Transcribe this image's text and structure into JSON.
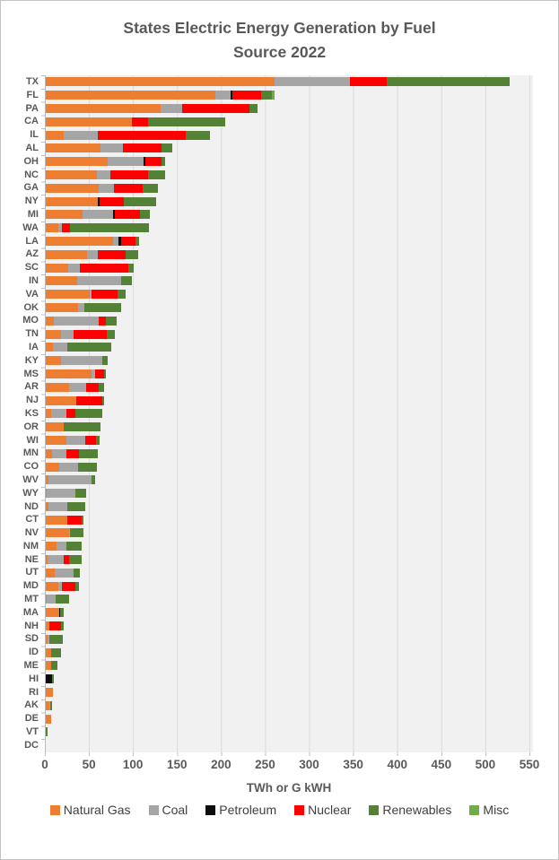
{
  "title": {
    "line1": "States Electric Energy  Generation by Fuel",
    "line2": "Source 2022"
  },
  "colors": {
    "title_text": "#595959",
    "axis_text": "#595959",
    "legend_text": "#404040",
    "plot_background": "#f1f1f1",
    "gridline": "#dadada"
  },
  "chart_data": {
    "type": "bar",
    "orientation": "horizontal",
    "stacked": true,
    "title": "States Electric Energy  Generation by Fuel Source 2022",
    "xlabel": "TWh or G kWH",
    "ylabel": "",
    "xlim": [
      0,
      550
    ],
    "xticks": [
      0,
      50,
      100,
      150,
      200,
      250,
      300,
      350,
      400,
      450,
      500,
      550
    ],
    "grid": true,
    "legend_position": "bottom",
    "categories": [
      "TX",
      "FL",
      "PA",
      "CA",
      "IL",
      "AL",
      "OH",
      "NC",
      "GA",
      "NY",
      "MI",
      "WA",
      "LA",
      "AZ",
      "SC",
      "IN",
      "VA",
      "OK",
      "MO",
      "TN",
      "IA",
      "KY",
      "MS",
      "AR",
      "NJ",
      "KS",
      "OR",
      "WI",
      "MN",
      "CO",
      "WV",
      "WY",
      "ND",
      "CT",
      "NV",
      "NM",
      "NE",
      "UT",
      "MD",
      "MT",
      "MA",
      "NH",
      "SD",
      "ID",
      "ME",
      "HI",
      "RI",
      "AK",
      "DE",
      "VT",
      "DC"
    ],
    "series": [
      {
        "name": "Natural Gas",
        "color": "#ED7D31",
        "values": [
          260,
          193,
          130,
          98,
          20,
          62,
          70,
          58,
          60,
          59,
          42,
          14,
          76,
          47,
          25,
          36,
          50,
          37,
          9,
          17,
          8,
          17,
          52,
          26,
          35,
          6,
          20,
          23,
          7,
          15,
          3,
          1,
          3,
          24,
          26,
          12,
          2,
          10,
          14,
          1,
          15,
          4,
          2,
          6,
          6,
          0,
          8,
          4,
          6,
          0,
          0
        ]
      },
      {
        "name": "Coal",
        "color": "#A5A5A5",
        "values": [
          85,
          17,
          25,
          0,
          39,
          26,
          41,
          15,
          17,
          0,
          34,
          4,
          7,
          12,
          14,
          50,
          2,
          7,
          51,
          15,
          16,
          47,
          4,
          20,
          0,
          17,
          0,
          22,
          16,
          22,
          49,
          33,
          21,
          0,
          2,
          11,
          18,
          22,
          4,
          10,
          0,
          0,
          2,
          0,
          0,
          0,
          0,
          1,
          0,
          0,
          0
        ]
      },
      {
        "name": "Petroleum",
        "color": "#0D0D0D",
        "values": [
          0,
          2,
          0,
          0,
          0,
          0,
          2,
          0,
          0,
          2,
          2,
          0,
          3,
          0,
          0,
          0,
          0,
          0,
          0,
          0,
          0,
          0,
          0,
          0,
          0,
          0,
          0,
          0,
          0,
          0,
          0,
          0,
          0,
          0,
          0,
          0,
          0,
          0,
          0,
          0,
          1,
          0,
          0,
          0,
          0,
          7,
          0,
          0,
          0,
          0,
          0
        ]
      },
      {
        "name": "Nuclear",
        "color": "#FF0000",
        "values": [
          42,
          32,
          76,
          18,
          100,
          43,
          18,
          43,
          33,
          28,
          29,
          10,
          16,
          32,
          55,
          0,
          29,
          0,
          8,
          37,
          0,
          0,
          10,
          14,
          29,
          11,
          0,
          12,
          15,
          0,
          0,
          0,
          0,
          17,
          0,
          0,
          7,
          0,
          16,
          0,
          0,
          13,
          0,
          0,
          0,
          0,
          0,
          0,
          0,
          0,
          0
        ]
      },
      {
        "name": "Renewables",
        "color": "#538135",
        "values": [
          140,
          13,
          9,
          88,
          27,
          13,
          5,
          19,
          17,
          36,
          11,
          89,
          4,
          14,
          6,
          12,
          10,
          42,
          12,
          9,
          50,
          6,
          2,
          6,
          2,
          30,
          42,
          4,
          21,
          21,
          4,
          12,
          21,
          2,
          15,
          18,
          14,
          7,
          4,
          16,
          4,
          3,
          15,
          11,
          7,
          2,
          0,
          2,
          0,
          2,
          0
        ]
      },
      {
        "name": "Misc",
        "color": "#70AD47",
        "values": [
          0,
          3,
          0,
          0,
          0,
          0,
          0,
          0,
          0,
          0,
          0,
          0,
          0,
          0,
          0,
          0,
          0,
          0,
          0,
          0,
          0,
          0,
          0,
          0,
          0,
          0,
          0,
          0,
          0,
          0,
          0,
          0,
          0,
          0,
          0,
          0,
          0,
          0,
          0,
          0,
          0,
          0,
          0,
          0,
          0,
          0,
          0,
          0,
          0,
          0,
          0
        ]
      }
    ]
  }
}
